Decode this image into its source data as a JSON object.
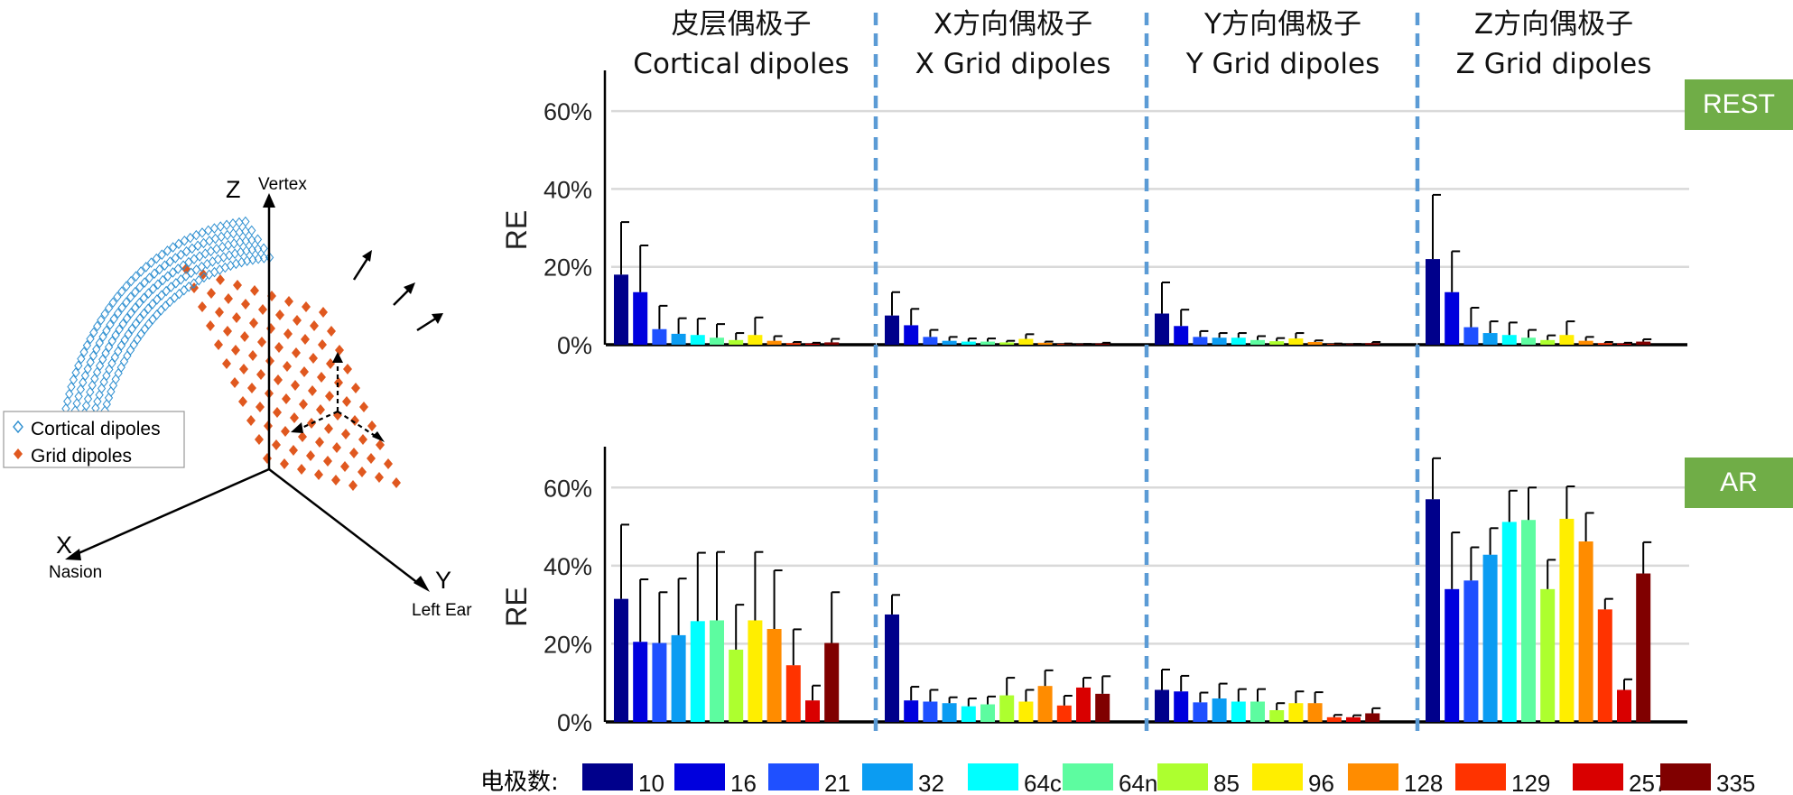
{
  "left_figure": {
    "z_label": "Z",
    "z_sub": "Vertex",
    "x_label": "X",
    "x_sub": "Nasion",
    "y_label": "Y",
    "y_sub": "Left Ear",
    "legend": [
      {
        "label": "Cortical dipoles",
        "color": "#2e8fd0",
        "marker": "open-diamond"
      },
      {
        "label": "Grid dipoles",
        "color": "#e0581f",
        "marker": "filled-diamond"
      }
    ]
  },
  "columns": [
    {
      "zh": "皮层偶极子",
      "en": "Cortical dipoles"
    },
    {
      "zh": "X方向偶极子",
      "en": "X Grid dipoles"
    },
    {
      "zh": "Y方向偶极子",
      "en": "Y Grid dipoles"
    },
    {
      "zh": "Z方向偶极子",
      "en": "Z Grid dipoles"
    }
  ],
  "conditions": [
    "REST",
    "AR"
  ],
  "chart_data": {
    "type": "bar",
    "ylabel": "RE",
    "ylim": [
      0,
      70
    ],
    "yticks": [
      "0%",
      "20%",
      "40%",
      "60%"
    ],
    "grid": true,
    "error_bars": true,
    "legend_title": "电极数:",
    "legend_position": "bottom",
    "categories": [
      "10",
      "16",
      "21",
      "32",
      "64c",
      "64n",
      "85",
      "96",
      "128",
      "129",
      "257",
      "335"
    ],
    "colors": [
      "#00008b",
      "#0000dd",
      "#1f50ff",
      "#0b9cf2",
      "#00ffff",
      "#5dfca0",
      "#adff2f",
      "#ffee00",
      "#ff8c00",
      "#ff3300",
      "#d90000",
      "#800000"
    ],
    "panels": [
      {
        "condition": "REST",
        "column": "Cortical dipoles",
        "values": [
          18,
          13.5,
          4,
          2.8,
          2.5,
          1.8,
          1.2,
          2.5,
          1,
          0.4,
          0.3,
          0.6
        ],
        "errors": [
          13.5,
          12,
          6,
          4,
          4.2,
          3.5,
          1.8,
          4.5,
          1.2,
          0.3,
          0.2,
          0.9
        ]
      },
      {
        "condition": "REST",
        "column": "X Grid dipoles",
        "values": [
          7.5,
          5,
          2,
          1,
          0.8,
          0.8,
          0.6,
          1.5,
          0.5,
          0.2,
          0.1,
          0.3
        ],
        "errors": [
          6,
          4.2,
          1.8,
          1,
          0.8,
          0.8,
          0.4,
          1.2,
          0.3,
          0.1,
          0.1,
          0.2
        ]
      },
      {
        "condition": "REST",
        "column": "Y Grid dipoles",
        "values": [
          8,
          4.8,
          2,
          1.8,
          1.8,
          1.2,
          0.9,
          1.6,
          0.7,
          0.2,
          0.1,
          0.4
        ],
        "errors": [
          8,
          4.2,
          1.5,
          1.2,
          1.2,
          1,
          0.8,
          1.4,
          0.4,
          0.1,
          0.1,
          0.3
        ]
      },
      {
        "condition": "REST",
        "column": "Z Grid dipoles",
        "values": [
          22,
          13.5,
          4.5,
          3,
          2.5,
          1.8,
          1.2,
          2.5,
          1,
          0.4,
          0.3,
          0.8
        ],
        "errors": [
          16.5,
          10.5,
          5,
          3,
          3.2,
          2,
          1.2,
          3.5,
          1,
          0.3,
          0.2,
          0.6
        ]
      },
      {
        "condition": "AR",
        "column": "Cortical dipoles",
        "values": [
          31.5,
          20.5,
          20.2,
          22.2,
          25.8,
          26,
          18.5,
          26,
          23.8,
          14.5,
          5.5,
          20.2
        ],
        "errors": [
          19,
          16,
          13,
          14.5,
          17.5,
          17.5,
          11.5,
          17.5,
          15,
          9.2,
          3.8,
          13
        ]
      },
      {
        "condition": "AR",
        "column": "X Grid dipoles",
        "values": [
          27.5,
          5.5,
          5.2,
          4.8,
          4,
          4.5,
          6.8,
          5.2,
          9.2,
          4.2,
          8.8,
          7.2
        ],
        "errors": [
          5,
          3.5,
          3,
          1.5,
          2,
          2,
          4.5,
          3,
          4,
          2.5,
          2.5,
          4.5
        ]
      },
      {
        "condition": "AR",
        "column": "Y Grid dipoles",
        "values": [
          8.2,
          7.8,
          5,
          6,
          5.2,
          5.2,
          3,
          4.8,
          4.8,
          1.2,
          1.2,
          2.2
        ],
        "errors": [
          5.2,
          4,
          2.5,
          3.8,
          3.2,
          3.2,
          1.8,
          3,
          2.8,
          0.6,
          0.5,
          1.3
        ]
      },
      {
        "condition": "AR",
        "column": "Z Grid dipoles",
        "values": [
          57,
          34,
          36.2,
          42.8,
          51.2,
          51.7,
          34,
          52,
          46.2,
          28.8,
          8.2,
          38
        ],
        "errors": [
          10.5,
          14.5,
          8.5,
          6.8,
          8,
          8.3,
          7.5,
          8.3,
          7.3,
          2.7,
          2.7,
          8
        ]
      }
    ]
  }
}
